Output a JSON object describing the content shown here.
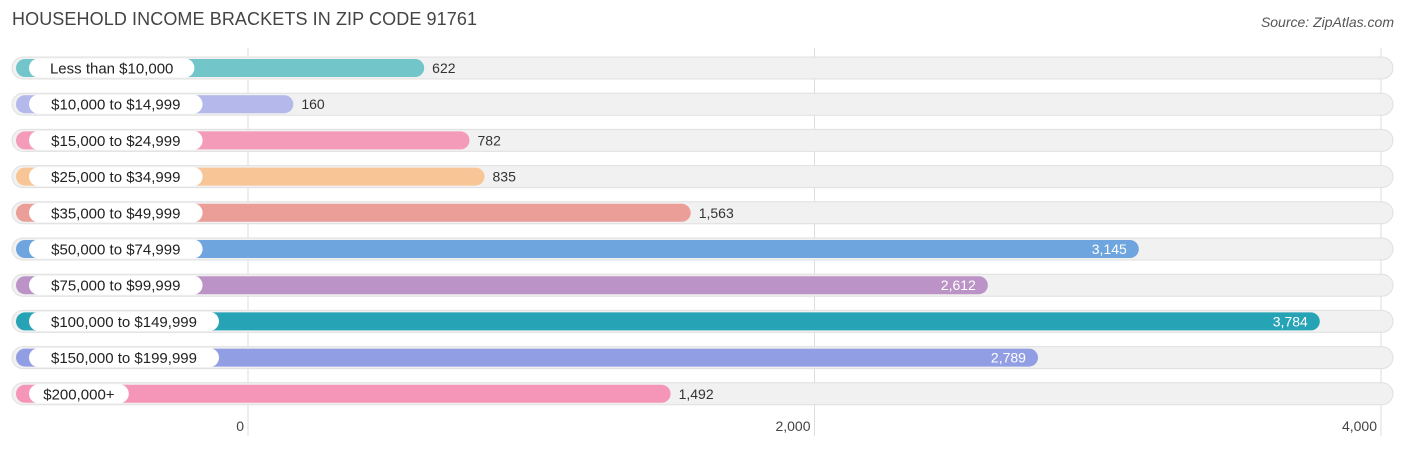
{
  "header": {
    "title": "HOUSEHOLD INCOME BRACKETS IN ZIP CODE 91761",
    "source": "Source: ZipAtlas.com"
  },
  "chart_data": {
    "type": "bar",
    "orientation": "horizontal",
    "title": "HOUSEHOLD INCOME BRACKETS IN ZIP CODE 91761",
    "xlabel": "",
    "ylabel": "",
    "xlim": [
      0,
      4000
    ],
    "ticks": [
      0,
      2000,
      4000
    ],
    "tick_labels": [
      "0",
      "2,000",
      "4,000"
    ],
    "grid": true,
    "categories": [
      "Less than $10,000",
      "$10,000 to $14,999",
      "$15,000 to $24,999",
      "$25,000 to $34,999",
      "$35,000 to $49,999",
      "$50,000 to $74,999",
      "$75,000 to $99,999",
      "$100,000 to $149,999",
      "$150,000 to $199,999",
      "$200,000+"
    ],
    "values": [
      622,
      160,
      782,
      835,
      1563,
      3145,
      2612,
      3784,
      2789,
      1492
    ],
    "value_labels": [
      "622",
      "160",
      "782",
      "835",
      "1,563",
      "3,145",
      "2,612",
      "3,784",
      "2,789",
      "1,492"
    ],
    "colors": [
      "#72c6c9",
      "#b4b8ea",
      "#f39bb8",
      "#f8c596",
      "#eb9d97",
      "#6fa5de",
      "#bb93c6",
      "#27a3b6",
      "#929ee4",
      "#f596b8"
    ]
  }
}
